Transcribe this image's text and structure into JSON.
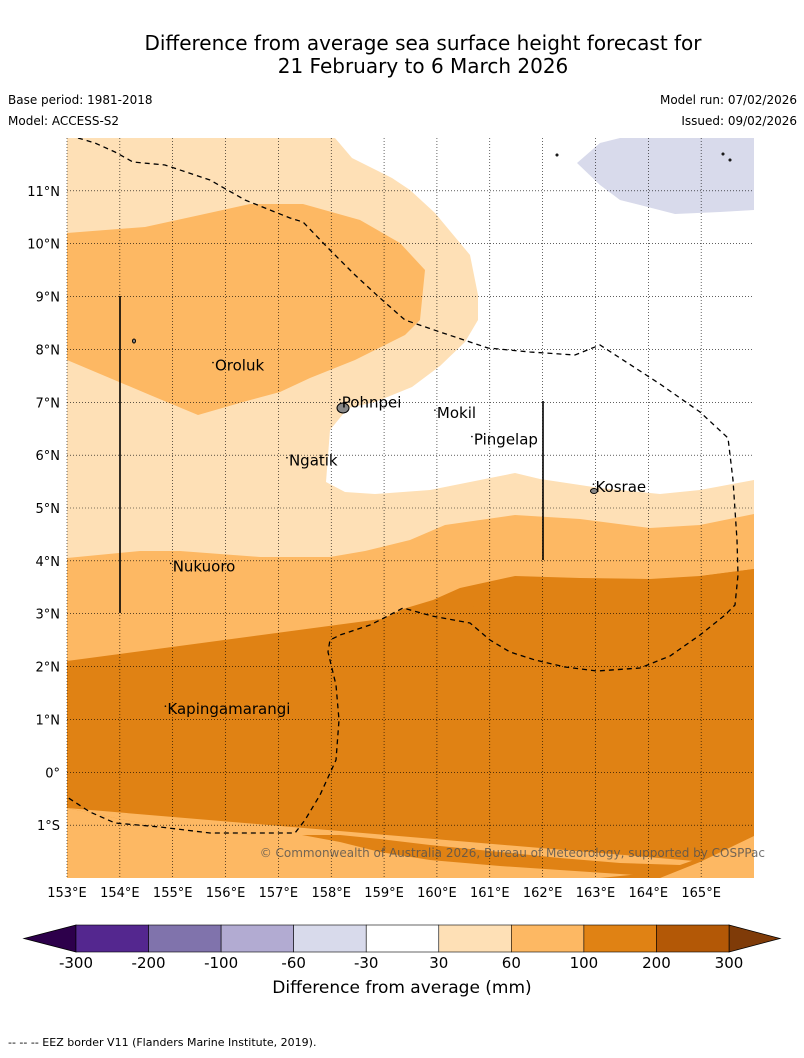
{
  "title": {
    "line1": "Difference from average sea surface height forecast for",
    "line2": "21 February to 6 March 2026"
  },
  "meta": {
    "base_period": "Base period: 1981-2018",
    "model": "Model: ACCESS-S2",
    "model_run": "Model run: 07/02/2026",
    "issued": "Issued: 09/02/2026"
  },
  "copyright": "© Commonwealth of Australia 2026, Bureau of Meteorology, supported by COSPPac",
  "axes": {
    "lon_ticks": [
      "153°E",
      "154°E",
      "155°E",
      "156°E",
      "157°E",
      "158°E",
      "159°E",
      "160°E",
      "161°E",
      "162°E",
      "163°E",
      "164°E",
      "165°E"
    ],
    "lon_values": [
      153,
      154,
      155,
      156,
      157,
      158,
      159,
      160,
      161,
      162,
      163,
      164,
      165
    ],
    "lat_ticks": [
      "11°N",
      "10°N",
      "9°N",
      "8°N",
      "7°N",
      "6°N",
      "5°N",
      "4°N",
      "3°N",
      "2°N",
      "1°N",
      "0°",
      "1°S"
    ],
    "lat_values": [
      11,
      10,
      9,
      8,
      7,
      6,
      5,
      4,
      3,
      2,
      1,
      0,
      -1
    ],
    "lon_range": [
      153,
      166
    ],
    "lat_range": [
      -2,
      12
    ]
  },
  "places": [
    {
      "name": "Oroluk",
      "lon": 155.8,
      "lat": 7.6
    },
    {
      "name": "Pohnpei",
      "lon": 158.2,
      "lat": 6.9
    },
    {
      "name": "Mokil",
      "lon": 160.0,
      "lat": 6.7
    },
    {
      "name": "Pingelap",
      "lon": 160.7,
      "lat": 6.2
    },
    {
      "name": "Ngatik",
      "lon": 157.2,
      "lat": 5.8
    },
    {
      "name": "Kosrae",
      "lon": 163.0,
      "lat": 5.3
    },
    {
      "name": "Nukuoro",
      "lon": 155.0,
      "lat": 3.8
    },
    {
      "name": "Kapingamarangi",
      "lon": 154.9,
      "lat": 1.1
    }
  ],
  "colorbar": {
    "labels": [
      "-300",
      "-200",
      "-100",
      "-60",
      "-30",
      "30",
      "60",
      "100",
      "200",
      "300"
    ],
    "colors": [
      "#54278f",
      "#8073ac",
      "#b2abd2",
      "#d8daeb",
      "#ffffff",
      "#fee0b6",
      "#fdb863",
      "#e08214",
      "#b35806"
    ],
    "extend_low_color": "#2d004b",
    "extend_high_color": "#7f3b08",
    "title": "Difference from average (mm)"
  },
  "footer": "--  --  -- EEZ border V11 (Flanders Marine Institute, 2019)."
}
